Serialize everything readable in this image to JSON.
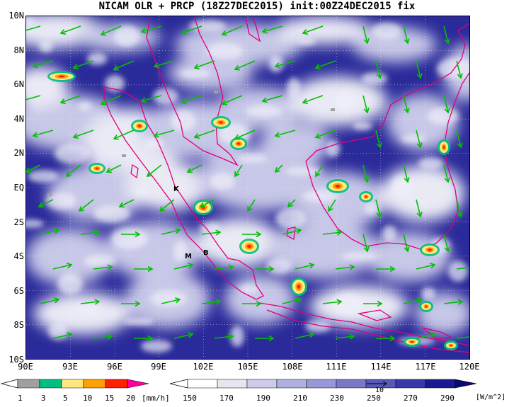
{
  "title": "NICAM OLR + PRCP (18Z27DEC2015) init:00Z24DEC2015 fix",
  "lat_labels": [
    "10N",
    "8N",
    "6N",
    "4N",
    "2N",
    "EQ",
    "2S",
    "4S",
    "6S",
    "8S",
    "10S"
  ],
  "lon_labels": [
    "90E",
    "93E",
    "96E",
    "99E",
    "102E",
    "105E",
    "108E",
    "111E",
    "114E",
    "117E",
    "120E"
  ],
  "stations": [
    {
      "label": "K"
    },
    {
      "label": "M"
    },
    {
      "label": "B"
    }
  ],
  "precip_colorbar": {
    "levels": [
      "1",
      "3",
      "5",
      "10",
      "15",
      "20"
    ],
    "unit": "[mm/h]",
    "colors": [
      "#a0a0a0",
      "#00c080",
      "#ffe880",
      "#ffa000",
      "#ff2000",
      "#ff00a0"
    ]
  },
  "olr_colorbar": {
    "levels": [
      "150",
      "170",
      "190",
      "210",
      "230",
      "250",
      "270",
      "290"
    ],
    "unit": "[W/m^2]",
    "colors": [
      "#ffffff",
      "#e6e6f2",
      "#ccccea",
      "#b0b0e0",
      "#9898d6",
      "#7878c8",
      "#5858b8",
      "#3838a8",
      "#1a1a90",
      "#0a0a70"
    ],
    "vector_ref": "10"
  },
  "coastline_color": "#e0007a",
  "wind_vector_color": "#00c000",
  "olr_field_color": "#2a2a9a"
}
